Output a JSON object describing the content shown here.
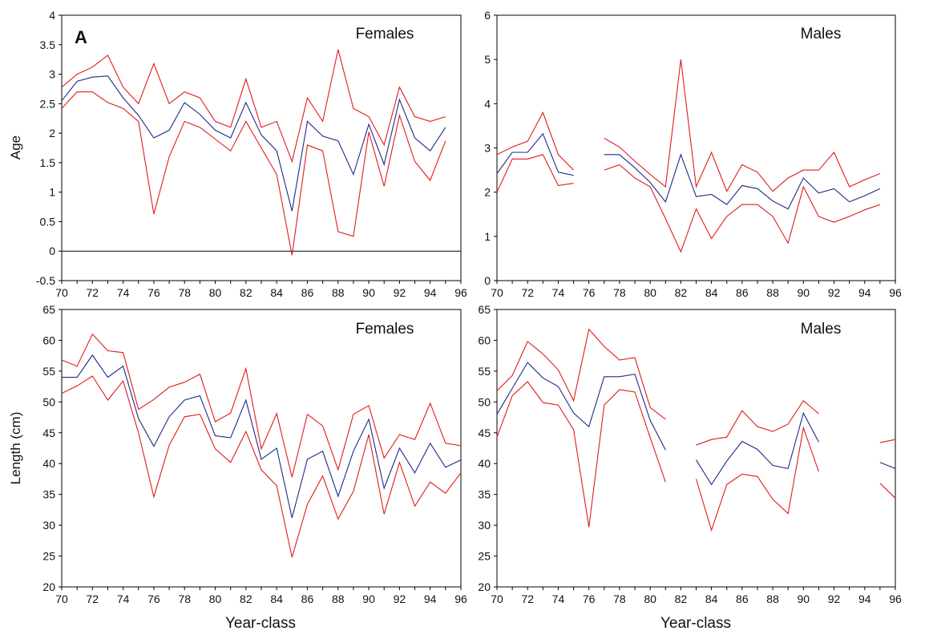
{
  "figure": {
    "panel_letter": "A",
    "xlabel": "Year-class"
  },
  "colors": {
    "mean": "#1c2a8a",
    "bounds": "#e01b1b",
    "zero_line": "#000000"
  },
  "chart_data": [
    {
      "id": "age-females",
      "type": "line",
      "title": "Females",
      "ylabel": "Age",
      "xlabel": "",
      "xlim": [
        70,
        96
      ],
      "ylim": [
        -0.5,
        4
      ],
      "xticks": [
        "70",
        "72",
        "74",
        "76",
        "78",
        "80",
        "82",
        "84",
        "86",
        "88",
        "90",
        "92",
        "94",
        "96"
      ],
      "yticks": [
        "-0.5",
        "0",
        "0.5",
        "1",
        "1.5",
        "2",
        "2.5",
        "3",
        "3.5",
        "4"
      ],
      "zero_line": true,
      "grid": false,
      "x": [
        70,
        71,
        72,
        73,
        74,
        75,
        76,
        77,
        78,
        79,
        80,
        81,
        82,
        83,
        84,
        85,
        86,
        87,
        88,
        89,
        90,
        91,
        92,
        93,
        94,
        95
      ],
      "series": [
        {
          "role": "upper",
          "values": [
            2.78,
            3.0,
            3.12,
            3.32,
            2.78,
            2.5,
            3.18,
            2.5,
            2.7,
            2.6,
            2.2,
            2.1,
            2.92,
            2.1,
            2.2,
            1.52,
            2.6,
            2.2,
            3.42,
            2.42,
            2.28,
            1.8,
            2.78,
            2.28,
            2.2,
            2.28
          ]
        },
        {
          "role": "mean",
          "values": [
            2.55,
            2.88,
            2.95,
            2.97,
            2.6,
            2.3,
            1.92,
            2.05,
            2.52,
            2.32,
            2.05,
            1.92,
            2.52,
            1.97,
            1.7,
            0.68,
            2.2,
            1.95,
            1.87,
            1.3,
            2.15,
            1.47,
            2.57,
            1.92,
            1.7,
            2.1
          ]
        },
        {
          "role": "lower",
          "values": [
            2.42,
            2.7,
            2.7,
            2.52,
            2.42,
            2.2,
            0.63,
            1.6,
            2.2,
            2.1,
            1.9,
            1.7,
            2.2,
            1.75,
            1.3,
            -0.07,
            1.8,
            1.7,
            0.33,
            0.25,
            2.02,
            1.1,
            2.3,
            1.52,
            1.2,
            1.87
          ]
        }
      ]
    },
    {
      "id": "age-males",
      "type": "line",
      "title": "Males",
      "ylabel": "",
      "xlabel": "",
      "xlim": [
        70,
        96
      ],
      "ylim": [
        0,
        6
      ],
      "xticks": [
        "70",
        "72",
        "74",
        "76",
        "78",
        "80",
        "82",
        "84",
        "86",
        "88",
        "90",
        "92",
        "94",
        "96"
      ],
      "yticks": [
        "0",
        "1",
        "2",
        "3",
        "4",
        "5",
        "6"
      ],
      "zero_line": false,
      "grid": false,
      "x": [
        70,
        71,
        72,
        73,
        74,
        75,
        76,
        77,
        78,
        79,
        80,
        81,
        82,
        83,
        84,
        85,
        86,
        87,
        88,
        89,
        90,
        91,
        92,
        93,
        94,
        95
      ],
      "series": [
        {
          "role": "upper",
          "values": [
            2.85,
            3.02,
            3.15,
            3.8,
            2.85,
            2.5,
            null,
            3.22,
            3.02,
            2.7,
            2.4,
            2.12,
            5.0,
            2.12,
            2.9,
            2.02,
            2.62,
            2.45,
            2.02,
            2.32,
            2.5,
            2.5,
            2.9,
            2.12,
            2.28,
            2.42
          ]
        },
        {
          "role": "mean",
          "values": [
            2.42,
            2.9,
            2.9,
            3.32,
            2.45,
            2.38,
            null,
            2.85,
            2.85,
            2.55,
            2.22,
            1.78,
            2.85,
            1.9,
            1.95,
            1.72,
            2.15,
            2.08,
            1.8,
            1.62,
            2.32,
            1.98,
            2.08,
            1.78,
            1.92,
            2.08
          ]
        },
        {
          "role": "lower",
          "values": [
            2.0,
            2.75,
            2.75,
            2.85,
            2.15,
            2.2,
            null,
            2.5,
            2.62,
            2.32,
            2.12,
            1.4,
            0.65,
            1.62,
            0.95,
            1.45,
            1.72,
            1.72,
            1.45,
            0.85,
            2.12,
            1.45,
            1.32,
            1.45,
            1.6,
            1.72
          ]
        }
      ]
    },
    {
      "id": "length-females",
      "type": "line",
      "title": "Females",
      "ylabel": "Length (cm)",
      "xlabel": "",
      "xlim": [
        70,
        96
      ],
      "ylim": [
        20,
        65
      ],
      "xticks": [
        "70",
        "72",
        "74",
        "76",
        "78",
        "80",
        "82",
        "84",
        "86",
        "88",
        "90",
        "92",
        "94",
        "96"
      ],
      "yticks": [
        "20",
        "25",
        "30",
        "35",
        "40",
        "45",
        "50",
        "55",
        "60",
        "65"
      ],
      "zero_line": false,
      "grid": false,
      "x": [
        70,
        71,
        72,
        73,
        74,
        75,
        76,
        77,
        78,
        79,
        80,
        81,
        82,
        83,
        84,
        85,
        86,
        87,
        88,
        89,
        90,
        91,
        92,
        93,
        94,
        95,
        96
      ],
      "series": [
        {
          "role": "upper",
          "values": [
            56.8,
            55.8,
            61.0,
            58.3,
            58.0,
            48.8,
            50.4,
            52.4,
            53.2,
            54.5,
            46.8,
            48.2,
            55.4,
            42.4,
            48.1,
            37.8,
            48.0,
            46.1,
            39.0,
            48.0,
            49.4,
            40.9,
            44.7,
            43.9,
            49.8,
            43.3,
            42.9
          ]
        },
        {
          "role": "mean",
          "values": [
            54.0,
            54.0,
            57.6,
            54.0,
            55.8,
            47.3,
            42.8,
            47.6,
            50.3,
            51.0,
            44.5,
            44.2,
            50.3,
            40.7,
            42.5,
            31.2,
            40.7,
            42.0,
            34.7,
            42.0,
            47.2,
            36.0,
            42.5,
            38.5,
            43.3,
            39.4,
            40.6
          ]
        },
        {
          "role": "lower",
          "values": [
            51.4,
            52.6,
            54.2,
            50.3,
            53.4,
            45.0,
            34.6,
            43.0,
            47.6,
            48.0,
            42.4,
            40.2,
            45.2,
            39.0,
            36.4,
            24.8,
            33.4,
            38.0,
            31.0,
            35.5,
            44.7,
            31.8,
            40.2,
            33.1,
            37.0,
            35.2,
            38.5
          ]
        }
      ]
    },
    {
      "id": "length-males",
      "type": "line",
      "title": "Males",
      "ylabel": "",
      "xlabel": "",
      "xlim": [
        70,
        96
      ],
      "ylim": [
        20,
        65
      ],
      "xticks": [
        "70",
        "72",
        "74",
        "76",
        "78",
        "80",
        "82",
        "84",
        "86",
        "88",
        "90",
        "92",
        "94",
        "96"
      ],
      "yticks": [
        "20",
        "25",
        "30",
        "35",
        "40",
        "45",
        "50",
        "55",
        "60",
        "65"
      ],
      "zero_line": false,
      "grid": false,
      "x": [
        70,
        71,
        72,
        73,
        74,
        75,
        76,
        77,
        78,
        79,
        80,
        81,
        82,
        83,
        84,
        85,
        86,
        87,
        88,
        89,
        90,
        91,
        92,
        93,
        94,
        95,
        96
      ],
      "series": [
        {
          "role": "upper",
          "values": [
            51.8,
            54.3,
            59.8,
            57.8,
            55.2,
            50.2,
            61.8,
            59.0,
            56.8,
            57.2,
            49.1,
            47.2,
            null,
            43.0,
            43.9,
            44.3,
            48.6,
            46.0,
            45.2,
            46.4,
            50.2,
            48.1,
            null,
            null,
            null,
            43.4,
            43.9
          ]
        },
        {
          "role": "mean",
          "values": [
            48.0,
            52.2,
            56.4,
            53.9,
            52.5,
            48.2,
            46.0,
            54.1,
            54.1,
            54.5,
            47.0,
            42.2,
            null,
            40.6,
            36.6,
            40.4,
            43.6,
            42.3,
            39.7,
            39.2,
            48.2,
            43.5,
            null,
            null,
            null,
            40.2,
            39.2
          ]
        },
        {
          "role": "lower",
          "values": [
            44.3,
            51.0,
            53.3,
            49.9,
            49.5,
            45.5,
            29.7,
            49.5,
            52.0,
            51.6,
            44.2,
            37.0,
            null,
            37.5,
            29.2,
            36.6,
            38.3,
            37.9,
            34.2,
            31.9,
            45.8,
            38.7,
            null,
            null,
            null,
            36.8,
            34.4
          ]
        }
      ]
    }
  ]
}
